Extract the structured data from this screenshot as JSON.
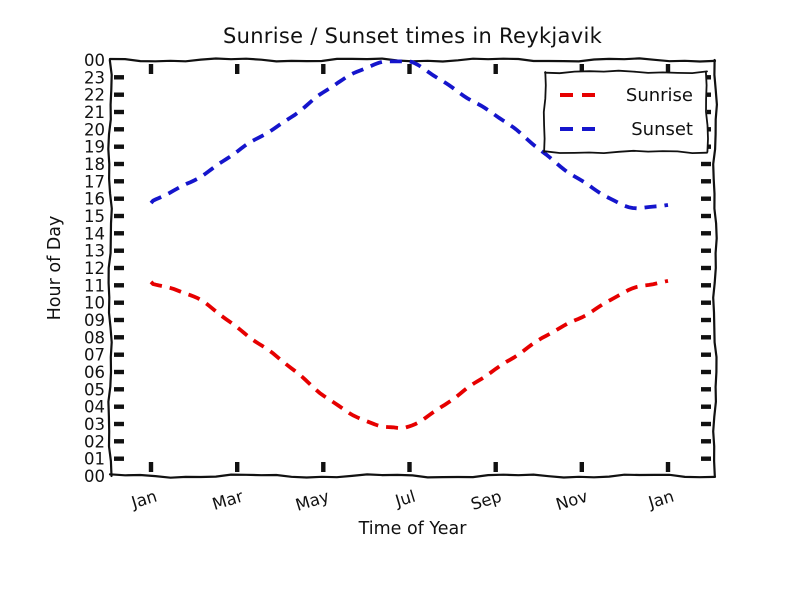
{
  "title": "Sunrise / Sunset times in Reykjavik",
  "chart_data": {
    "type": "line",
    "style": "xkcd-handdrawn, thick dashed curves, wavy axis frame",
    "title": "Sunrise / Sunset times in Reykjavik",
    "xlabel": "Time of Year",
    "ylabel": "Hour of Day",
    "xlim_months": [
      -0.95,
      13.05
    ],
    "ylim": [
      0,
      24
    ],
    "grid": false,
    "legend": {
      "position": "upper right",
      "entries": [
        "Sunrise",
        "Sunset"
      ]
    },
    "xtick_labels": [
      "Jan",
      "Mar",
      "May",
      "Jul",
      "Sep",
      "Nov",
      "Jan"
    ],
    "xtick_months": [
      0,
      2,
      4,
      6,
      8,
      10,
      12
    ],
    "ytick_labels": [
      "00",
      "01",
      "02",
      "03",
      "04",
      "05",
      "06",
      "07",
      "08",
      "09",
      "10",
      "11",
      "12",
      "13",
      "14",
      "15",
      "16",
      "17",
      "18",
      "19",
      "20",
      "21",
      "22",
      "23",
      "00"
    ],
    "series": [
      {
        "name": "Sunrise",
        "color": "#e60000",
        "line_style": "dashed",
        "x_months": [
          0,
          1,
          2,
          3,
          4,
          5,
          5.6,
          6,
          7,
          8,
          9,
          10,
          11,
          12
        ],
        "y_hours": [
          11.2,
          10.3,
          8.6,
          6.7,
          4.7,
          3.1,
          2.8,
          2.9,
          4.4,
          6.2,
          7.8,
          9.2,
          10.6,
          11.25
        ]
      },
      {
        "name": "Sunset",
        "color": "#1515cc",
        "line_style": "dashed",
        "x_months": [
          0,
          1,
          2,
          3,
          4,
          5,
          5.6,
          6,
          7,
          8,
          9,
          10,
          11,
          12
        ],
        "y_hours": [
          15.75,
          17.1,
          18.7,
          20.3,
          22.1,
          23.6,
          24.0,
          23.9,
          22.4,
          20.8,
          18.9,
          17.0,
          15.6,
          15.65
        ]
      }
    ]
  }
}
